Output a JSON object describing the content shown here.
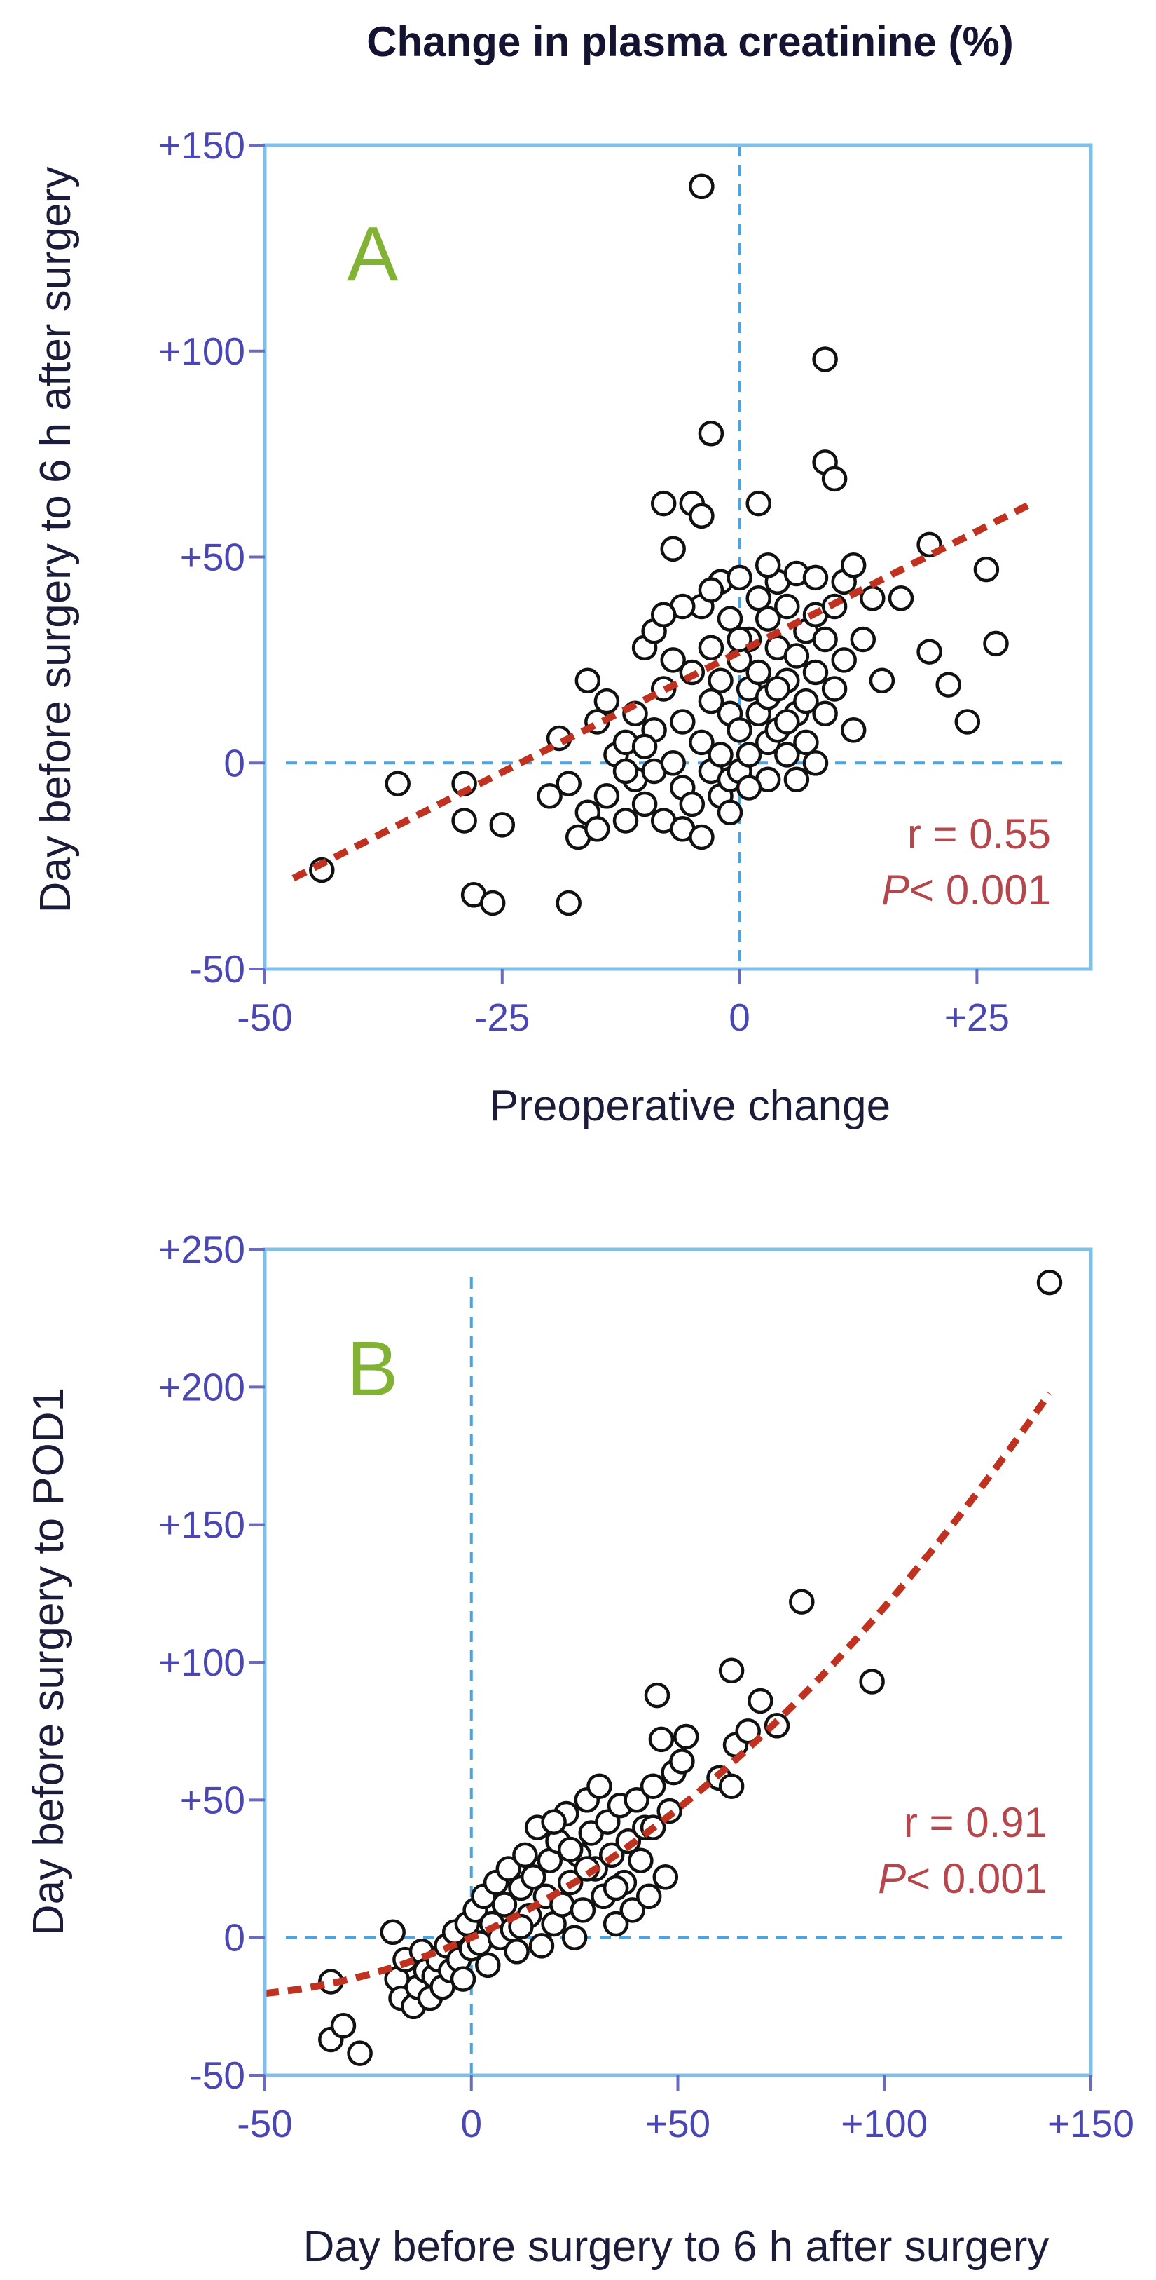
{
  "title": "Change in plasma creatinine (%)",
  "chart_data": [
    {
      "type": "scatter",
      "panel_label": "A",
      "xlabel": "Preoperative change",
      "ylabel": "Day before surgery to 6 h after surgery",
      "xlim": [
        -50,
        37
      ],
      "ylim": [
        -50,
        150
      ],
      "xticks": [
        -50,
        -25,
        0,
        25
      ],
      "xtick_labels": [
        "-50",
        "-25",
        "0",
        "+25"
      ],
      "yticks": [
        -50,
        0,
        50,
        100,
        150
      ],
      "ytick_labels": [
        "-50",
        "0",
        "+50",
        "+100",
        "+150"
      ],
      "stats": {
        "r": "r = 0.55",
        "p_prefix": "P",
        "p_rest": "< 0.001"
      },
      "trend": {
        "x0": -47,
        "x1": 31,
        "slope": 1.17,
        "intercept": 27
      },
      "points": [
        [
          -44,
          -26
        ],
        [
          -36,
          -5
        ],
        [
          -29,
          -5
        ],
        [
          -29,
          -14
        ],
        [
          -28,
          -32
        ],
        [
          -26,
          -34
        ],
        [
          -25,
          -15
        ],
        [
          -19,
          6
        ],
        [
          -18,
          -34
        ],
        [
          -18,
          -5
        ],
        [
          -17,
          -18
        ],
        [
          -16,
          -12
        ],
        [
          -16,
          20
        ],
        [
          -15,
          10
        ],
        [
          -15,
          -16
        ],
        [
          -14,
          -8
        ],
        [
          -14,
          15
        ],
        [
          -13,
          2
        ],
        [
          -12,
          -14
        ],
        [
          -12,
          5
        ],
        [
          -11,
          -4
        ],
        [
          -11,
          12
        ],
        [
          -10,
          -10
        ],
        [
          -10,
          28
        ],
        [
          -9,
          -2
        ],
        [
          -9,
          8
        ],
        [
          -9,
          32
        ],
        [
          -8,
          -14
        ],
        [
          -8,
          18
        ],
        [
          -8,
          63
        ],
        [
          -7,
          52
        ],
        [
          -7,
          0
        ],
        [
          -7,
          25
        ],
        [
          -6,
          -6
        ],
        [
          -6,
          -16
        ],
        [
          -6,
          10
        ],
        [
          -5,
          22
        ],
        [
          -5,
          63
        ],
        [
          -5,
          -10
        ],
        [
          -4,
          60
        ],
        [
          -4,
          38
        ],
        [
          -4,
          -18
        ],
        [
          -4,
          5
        ],
        [
          -4,
          140
        ],
        [
          -3,
          28
        ],
        [
          -3,
          -2
        ],
        [
          -3,
          15
        ],
        [
          -3,
          80
        ],
        [
          -2,
          44
        ],
        [
          -2,
          20
        ],
        [
          -2,
          -8
        ],
        [
          -1,
          12
        ],
        [
          -1,
          35
        ],
        [
          -1,
          -4
        ],
        [
          0,
          45
        ],
        [
          0,
          25
        ],
        [
          0,
          8
        ],
        [
          0,
          -2
        ],
        [
          1,
          18
        ],
        [
          1,
          30
        ],
        [
          1,
          2
        ],
        [
          2,
          63
        ],
        [
          2,
          40
        ],
        [
          2,
          22
        ],
        [
          2,
          12
        ],
        [
          3,
          5
        ],
        [
          3,
          35
        ],
        [
          3,
          16
        ],
        [
          3,
          -4
        ],
        [
          4,
          28
        ],
        [
          4,
          44
        ],
        [
          4,
          8
        ],
        [
          5,
          20
        ],
        [
          5,
          38
        ],
        [
          5,
          2
        ],
        [
          6,
          26
        ],
        [
          6,
          46
        ],
        [
          6,
          12
        ],
        [
          7,
          15
        ],
        [
          7,
          32
        ],
        [
          7,
          5
        ],
        [
          8,
          45
        ],
        [
          8,
          22
        ],
        [
          8,
          0
        ],
        [
          9,
          73
        ],
        [
          9,
          98
        ],
        [
          9,
          30
        ],
        [
          9,
          12
        ],
        [
          10,
          69
        ],
        [
          10,
          18
        ],
        [
          11,
          44
        ],
        [
          11,
          25
        ],
        [
          12,
          48
        ],
        [
          12,
          8
        ],
        [
          13,
          30
        ],
        [
          14,
          40
        ],
        [
          15,
          20
        ],
        [
          17,
          40
        ],
        [
          20,
          53
        ],
        [
          20,
          27
        ],
        [
          22,
          19
        ],
        [
          24,
          10
        ],
        [
          26,
          47
        ],
        [
          27,
          29
        ],
        [
          -20,
          -8
        ],
        [
          -6,
          38
        ],
        [
          -2,
          2
        ],
        [
          3,
          48
        ],
        [
          -1,
          -12
        ],
        [
          5,
          10
        ],
        [
          -10,
          4
        ],
        [
          8,
          36
        ],
        [
          6,
          -4
        ],
        [
          -12,
          -2
        ],
        [
          1,
          -6
        ],
        [
          -8,
          36
        ],
        [
          4,
          18
        ],
        [
          10,
          38
        ],
        [
          -3,
          42
        ],
        [
          0,
          30
        ]
      ]
    },
    {
      "type": "scatter",
      "panel_label": "B",
      "xlabel": "Day before surgery to 6 h after surgery",
      "ylabel": "Day before surgery to POD1",
      "xlim": [
        -50,
        150
      ],
      "ylim": [
        -50,
        250
      ],
      "xticks": [
        -50,
        0,
        50,
        100,
        150
      ],
      "xtick_labels": [
        "-50",
        "0",
        "+50",
        "+100",
        "+150"
      ],
      "yticks": [
        -50,
        0,
        50,
        100,
        150,
        200,
        250
      ],
      "ytick_labels": [
        "-50",
        "0",
        "+50",
        "+100",
        "+150",
        "+200",
        "+250"
      ],
      "stats": {
        "r": "r = 0.91",
        "p_prefix": "P",
        "p_rest": "< 0.001"
      },
      "trend": {
        "x0": -50,
        "x1": 140,
        "a": 0.0053,
        "b": 0.67,
        "c": 0
      },
      "points": [
        [
          -34,
          -16
        ],
        [
          -34,
          -37
        ],
        [
          -31,
          -32
        ],
        [
          -27,
          -42
        ],
        [
          -19,
          2
        ],
        [
          -18,
          -15
        ],
        [
          -17,
          -22
        ],
        [
          -16,
          -8
        ],
        [
          -14,
          -25
        ],
        [
          -13,
          -18
        ],
        [
          -12,
          -5
        ],
        [
          -11,
          -12
        ],
        [
          -10,
          -22
        ],
        [
          -9,
          -14
        ],
        [
          -8,
          -8
        ],
        [
          -7,
          -18
        ],
        [
          -6,
          -3
        ],
        [
          -5,
          -12
        ],
        [
          -4,
          2
        ],
        [
          -3,
          -8
        ],
        [
          -2,
          -15
        ],
        [
          -1,
          5
        ],
        [
          0,
          -4
        ],
        [
          1,
          10
        ],
        [
          2,
          -2
        ],
        [
          3,
          15
        ],
        [
          4,
          -10
        ],
        [
          5,
          5
        ],
        [
          6,
          20
        ],
        [
          7,
          0
        ],
        [
          8,
          12
        ],
        [
          9,
          25
        ],
        [
          10,
          3
        ],
        [
          11,
          -5
        ],
        [
          12,
          18
        ],
        [
          13,
          30
        ],
        [
          14,
          8
        ],
        [
          15,
          22
        ],
        [
          16,
          40
        ],
        [
          17,
          -3
        ],
        [
          18,
          15
        ],
        [
          19,
          28
        ],
        [
          20,
          5
        ],
        [
          21,
          35
        ],
        [
          22,
          12
        ],
        [
          23,
          45
        ],
        [
          24,
          20
        ],
        [
          25,
          0
        ],
        [
          26,
          30
        ],
        [
          27,
          10
        ],
        [
          28,
          50
        ],
        [
          29,
          38
        ],
        [
          30,
          25
        ],
        [
          31,
          55
        ],
        [
          32,
          15
        ],
        [
          33,
          42
        ],
        [
          34,
          30
        ],
        [
          35,
          5
        ],
        [
          36,
          48
        ],
        [
          37,
          20
        ],
        [
          38,
          35
        ],
        [
          39,
          10
        ],
        [
          40,
          50
        ],
        [
          41,
          28
        ],
        [
          42,
          40
        ],
        [
          43,
          15
        ],
        [
          44,
          55
        ],
        [
          45,
          88
        ],
        [
          46,
          72
        ],
        [
          47,
          22
        ],
        [
          48,
          46
        ],
        [
          49,
          60
        ],
        [
          51,
          64
        ],
        [
          52,
          73
        ],
        [
          60,
          58
        ],
        [
          63,
          55
        ],
        [
          63,
          97
        ],
        [
          64,
          70
        ],
        [
          67,
          75
        ],
        [
          70,
          86
        ],
        [
          74,
          77
        ],
        [
          80,
          122
        ],
        [
          97,
          93
        ],
        [
          140,
          238
        ],
        [
          20,
          42
        ],
        [
          28,
          25
        ],
        [
          35,
          18
        ],
        [
          44,
          40
        ],
        [
          12,
          4
        ],
        [
          24,
          32
        ]
      ]
    }
  ]
}
